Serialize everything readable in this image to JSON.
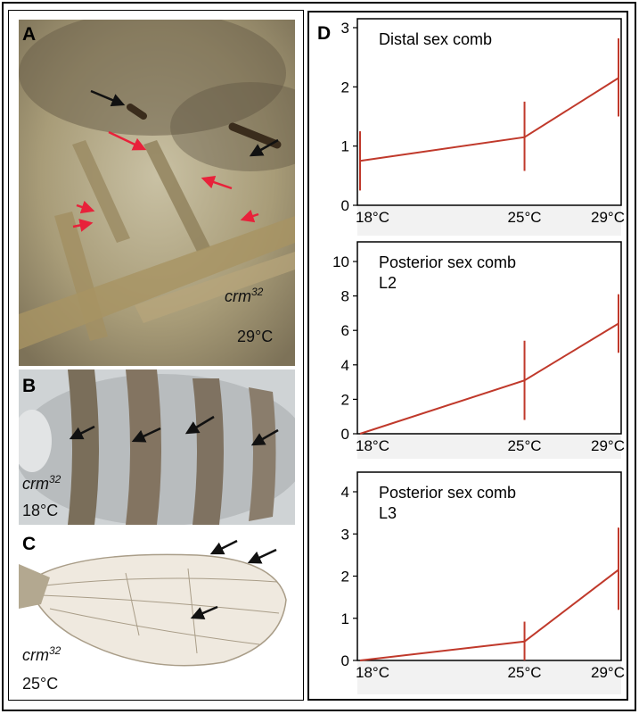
{
  "figure": {
    "panel_a": {
      "letter": "A",
      "genotype": "crm",
      "genotype_sup": "32",
      "temperature": "29°C"
    },
    "panel_b": {
      "letter": "B",
      "genotype": "crm",
      "genotype_sup": "32",
      "temperature": "18°C"
    },
    "panel_c": {
      "letter": "C",
      "genotype": "crm",
      "genotype_sup": "32",
      "temperature": "25°C"
    },
    "panel_d": {
      "letter": "D"
    }
  },
  "colors": {
    "line": "#c0392b",
    "black_arrow": "#111111",
    "red_arrow": "#e8213a"
  },
  "chart_data": [
    {
      "type": "line",
      "title": "Distal sex comb",
      "categories": [
        "18°C",
        "25°C",
        "29°C"
      ],
      "x": [
        18,
        25,
        29
      ],
      "values": [
        0.75,
        1.15,
        2.15
      ],
      "error_low": [
        0.25,
        0.58,
        1.5
      ],
      "error_high": [
        1.25,
        1.75,
        2.82
      ],
      "ylim": [
        0,
        3
      ],
      "yticks": [
        0,
        1,
        2,
        3
      ]
    },
    {
      "type": "line",
      "title": "Posterior sex comb",
      "title_line2": "L2",
      "categories": [
        "18°C",
        "25°C",
        "29°C"
      ],
      "x": [
        18,
        25,
        29
      ],
      "values": [
        0,
        3.1,
        6.4
      ],
      "error_low": [
        0,
        0.8,
        4.7
      ],
      "error_high": [
        0,
        5.4,
        8.1
      ],
      "ylim": [
        0,
        10
      ],
      "yticks": [
        0,
        2,
        4,
        6,
        8,
        10
      ]
    },
    {
      "type": "line",
      "title": "Posterior sex comb",
      "title_line2": "L3",
      "categories": [
        "18°C",
        "25°C",
        "29°C"
      ],
      "x": [
        18,
        25,
        29
      ],
      "values": [
        0,
        0.45,
        2.15
      ],
      "error_low": [
        0,
        0,
        1.2
      ],
      "error_high": [
        0,
        0.92,
        3.15
      ],
      "ylim": [
        0,
        4
      ],
      "yticks": [
        0,
        1,
        2,
        3,
        4
      ]
    }
  ]
}
